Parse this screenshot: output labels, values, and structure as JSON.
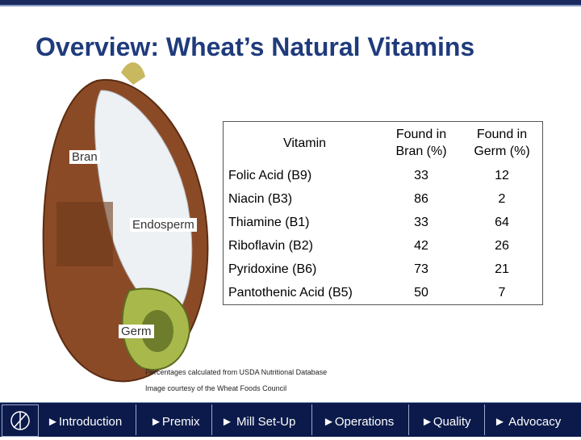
{
  "header": {
    "title": "Overview: Wheat’s Natural Vitamins"
  },
  "image_labels": [
    "Bran",
    "Endosperm",
    "Germ"
  ],
  "table": {
    "columns": [
      "Vitamin",
      "Found in Bran (%)",
      "Found in Germ (%)"
    ],
    "rows": [
      [
        "Folic Acid (B9)",
        33,
        12
      ],
      [
        "Niacin (B3)",
        86,
        2
      ],
      [
        "Thiamine (B1)",
        33,
        64
      ],
      [
        "Riboflavin (B2)",
        42,
        26
      ],
      [
        "Pyridoxine (B6)",
        73,
        21
      ],
      [
        "Pantothenic Acid (B5)",
        50,
        7
      ]
    ]
  },
  "notes": [
    "Percentages calculated from USDA Nutritional Database",
    "Image courtesy of the Wheat Foods Council"
  ],
  "nav": [
    "►Introduction",
    "►Premix",
    "► Mill Set-Up",
    "►Operations",
    "►Quality",
    "► Advocacy"
  ]
}
